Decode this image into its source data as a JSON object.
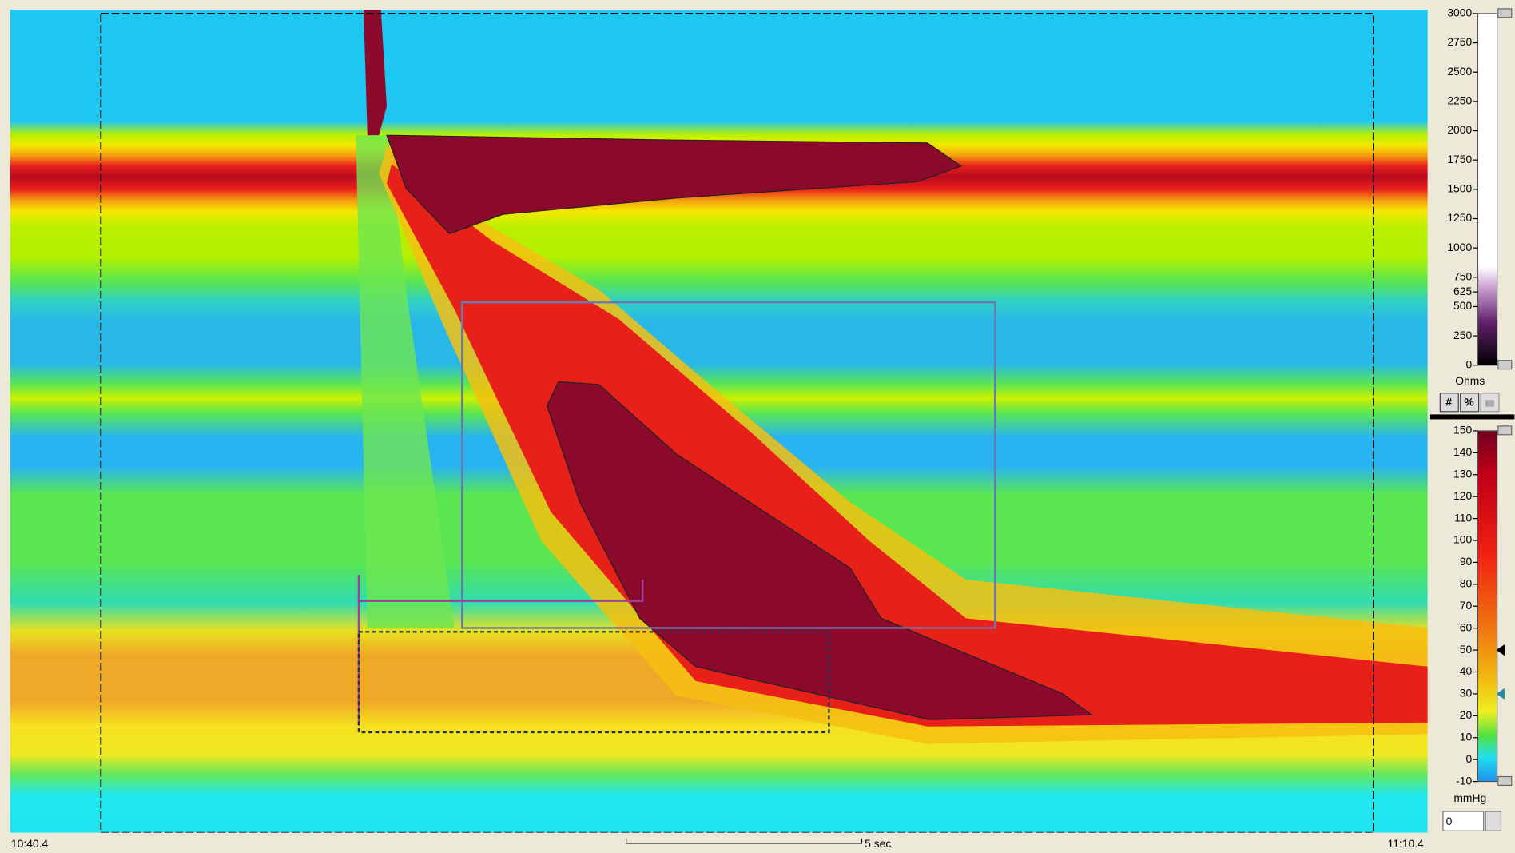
{
  "plot": {
    "start_time": "10:40.4",
    "end_time": "11:10.4",
    "scale_bar_label": "5 sec"
  },
  "impedance_scale": {
    "unit": "Ohms",
    "range": [
      0,
      3000
    ],
    "ticks": [
      3000,
      2750,
      2500,
      2250,
      2000,
      1750,
      1500,
      1250,
      1000,
      750,
      625,
      500,
      250,
      0
    ],
    "buttons": [
      "#",
      "%"
    ]
  },
  "pressure_scale": {
    "unit": "mmHg",
    "range": [
      -10,
      150
    ],
    "ticks": [
      150,
      140,
      130,
      120,
      110,
      100,
      90,
      80,
      70,
      60,
      50,
      40,
      30,
      20,
      10,
      0,
      -10
    ],
    "markers": [
      50,
      30
    ],
    "input_value": "0"
  }
}
